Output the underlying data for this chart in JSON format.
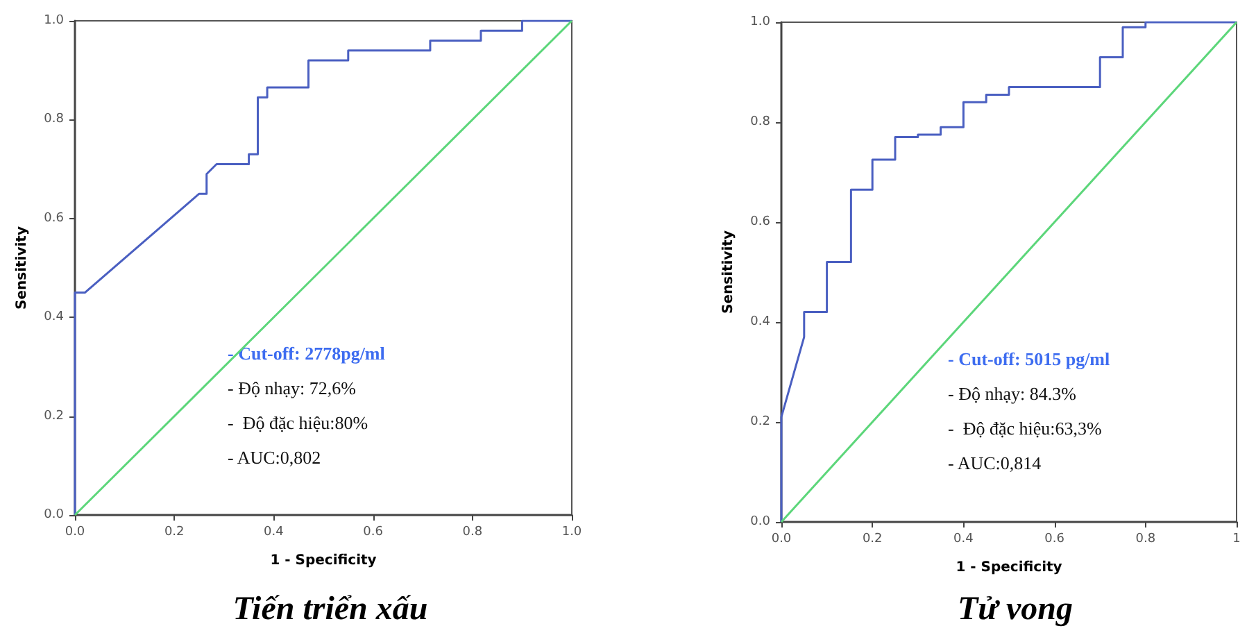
{
  "chart_data": [
    {
      "type": "line",
      "title": "Tiến triển xấu",
      "xlabel": "1 - Specificity",
      "ylabel": "Sensitivity",
      "xlim": [
        0,
        1
      ],
      "ylim": [
        0,
        1
      ],
      "xticks": [
        {
          "value": 0,
          "label": "0.0"
        },
        {
          "value": 0.2,
          "label": "0.2"
        },
        {
          "value": 0.4,
          "label": "0.4"
        },
        {
          "value": 0.6,
          "label": "0.6"
        },
        {
          "value": 0.8,
          "label": "0.8"
        },
        {
          "value": 1,
          "label": "1.0"
        }
      ],
      "yticks": [
        {
          "value": 0,
          "label": "0.0"
        },
        {
          "value": 0.2,
          "label": "0.2"
        },
        {
          "value": 0.4,
          "label": "0.4"
        },
        {
          "value": 0.6,
          "label": "0.6"
        },
        {
          "value": 0.8,
          "label": "0.8"
        },
        {
          "value": 1,
          "label": "1.0"
        }
      ],
      "grid": false,
      "marker": "none",
      "line_style": "solid",
      "series": [
        {
          "color": "#4a5fc1",
          "x": [
            0,
            0,
            0.02,
            0.25,
            0.265,
            0.265,
            0.285,
            0.35,
            0.35,
            0.368,
            0.368,
            0.387,
            0.387,
            0.47,
            0.47,
            0.55,
            0.55,
            0.715,
            0.715,
            0.817,
            0.817,
            0.9,
            0.9,
            1
          ],
          "values": [
            0,
            0.45,
            0.45,
            0.65,
            0.65,
            0.69,
            0.71,
            0.71,
            0.73,
            0.73,
            0.845,
            0.845,
            0.865,
            0.865,
            0.92,
            0.92,
            0.94,
            0.94,
            0.96,
            0.96,
            0.98,
            0.98,
            1,
            1
          ]
        },
        {
          "color": "#5cd67a",
          "x": [
            0,
            1
          ],
          "values": [
            0,
            1
          ]
        }
      ],
      "annotations": [
        "- Cut-off: 2778pg/ml",
        "- Độ nhạy: 72,6%",
        "-  Độ đặc hiệu:80%",
        "- AUC:0,802"
      ]
    },
    {
      "type": "line",
      "title": "Tử vong",
      "xlabel": "1 - Specificity",
      "ylabel": "Sensitivity",
      "xlim": [
        0,
        1
      ],
      "ylim": [
        0,
        1
      ],
      "xticks": [
        {
          "value": 0,
          "label": "0.0"
        },
        {
          "value": 0.2,
          "label": "0.2"
        },
        {
          "value": 0.4,
          "label": "0.4"
        },
        {
          "value": 0.6,
          "label": "0.6"
        },
        {
          "value": 0.8,
          "label": "0.8"
        },
        {
          "value": 1,
          "label": "1"
        }
      ],
      "yticks": [
        {
          "value": 0,
          "label": "0.0"
        },
        {
          "value": 0.2,
          "label": "0.2"
        },
        {
          "value": 0.4,
          "label": "0.4"
        },
        {
          "value": 0.6,
          "label": "0.6"
        },
        {
          "value": 0.8,
          "label": "0.8"
        },
        {
          "value": 1,
          "label": "1.0"
        }
      ],
      "grid": false,
      "marker": "none",
      "line_style": "solid",
      "series": [
        {
          "color": "#4a5fc1",
          "x": [
            0,
            0,
            0.05,
            0.05,
            0.1,
            0.1,
            0.153,
            0.153,
            0.2,
            0.2,
            0.25,
            0.25,
            0.3,
            0.3,
            0.35,
            0.35,
            0.4,
            0.4,
            0.45,
            0.45,
            0.5,
            0.5,
            0.7,
            0.7,
            0.75,
            0.75,
            0.8,
            0.8,
            1
          ],
          "values": [
            0,
            0.21,
            0.37,
            0.42,
            0.42,
            0.52,
            0.52,
            0.665,
            0.665,
            0.725,
            0.725,
            0.77,
            0.77,
            0.775,
            0.775,
            0.79,
            0.79,
            0.84,
            0.84,
            0.855,
            0.855,
            0.87,
            0.87,
            0.93,
            0.93,
            0.99,
            0.99,
            1,
            1
          ]
        },
        {
          "color": "#5cd67a",
          "x": [
            0,
            1
          ],
          "values": [
            0,
            1
          ]
        }
      ],
      "annotations": [
        "- Cut-off: 5015 pg/ml",
        "- Độ nhạy: 84.3%",
        "-  Độ đặc hiệu:63,3%",
        "- AUC:0,814"
      ]
    }
  ]
}
